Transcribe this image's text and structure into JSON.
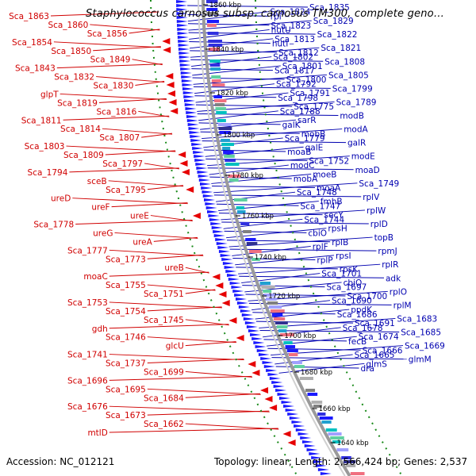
{
  "header": {
    "title": "Staphylococcus carnosus subsp. carnosus TM300, complete geno…"
  },
  "footer": {
    "accession": "Accession: NC_012121",
    "summary": "Topology: linear; Length: 2,566,424 bp; Genes: 2,537"
  },
  "colors": {
    "left_strand_labels": "#d00000",
    "right_strand_labels": "#0000b0",
    "left_gene_arrows": "#e60000",
    "right_gene_arrows": "#1a1aff",
    "backbone": "#888888",
    "marker_dots": "#1a8a1a"
  },
  "kbp_ticks": [
    "1860 kbp",
    "1840 kbp",
    "1820 kbp",
    "1800 kbp",
    "1780 kbp",
    "1760 kbp",
    "1740 kbp",
    "1720 kbp",
    "1700 kbp",
    "1680 kbp",
    "1660 kbp",
    "1640 kbp"
  ],
  "left_labels": [
    "Sca_1863",
    "Sca_1860",
    "Sca_1856",
    "Sca_1854",
    "Sca_1850",
    "Sca_1849",
    "Sca_1843",
    "Sca_1832",
    "Sca_1830",
    "glpT",
    "Sca_1819",
    "Sca_1816",
    "Sca_1811",
    "Sca_1814",
    "Sca_1807",
    "Sca_1803",
    "Sca_1809",
    "Sca_1797",
    "Sca_1794",
    "sceB",
    "Sca_1795",
    "ureD",
    "ureF",
    "ureE",
    "Sca_1778",
    "ureG",
    "ureA",
    "Sca_1777",
    "Sca_1773",
    "ureB",
    "moaC",
    "Sca_1755",
    "Sca_1751",
    "Sca_1753",
    "Sca_1754",
    "Sca_1745",
    "gdh",
    "Sca_1746",
    "glcU",
    "Sca_1741",
    "Sca_1737",
    "Sca_1699",
    "Sca_1696",
    "Sca_1695",
    "Sca_1684",
    "Sca_1676",
    "Sca_1673",
    "Sca_1662",
    "mtlD"
  ],
  "right_labels": [
    "Sca_1835",
    "Sca_1824",
    "rpi",
    "Sca_1829",
    "Sca_1823",
    "hutU",
    "Sca_1822",
    "Sca_1813",
    "hutI",
    "Sca_1821",
    "Sca_1812",
    "Sca_1802",
    "Sca_1808",
    "Sca_1801",
    "Sca_1817",
    "Sca_1805",
    "Sca_1800",
    "Sca_1792",
    "Sca_1799",
    "Sca_1791",
    "Sca_1798",
    "Sca_1789",
    "Sca_1775",
    "Sca_1788",
    "modB",
    "sarR",
    "galK",
    "modA",
    "mobB",
    "Sca_1779",
    "galR",
    "galE",
    "moaB",
    "modE",
    "Sca_1752",
    "modC",
    "moaD",
    "moeB",
    "mobA",
    "Sca_1749",
    "moaA",
    "Sca_1748",
    "rplV",
    "fmhB",
    "Sca_1747",
    "rplW",
    "secY",
    "Sca_1744",
    "rplD",
    "rpsH",
    "cbiO",
    "topB",
    "rplB",
    "rplF",
    "rpmJ",
    "rpsI",
    "rplP",
    "rplR",
    "rpsK",
    "Sca_1701",
    "adk",
    "cbiO",
    "Sca_1697",
    "rplO",
    "Sca_1700",
    "Sca_1690",
    "rplM",
    "ppdK",
    "Sca_1686",
    "Sca_1683",
    "Sca_1691",
    "Sca_1678",
    "Sca_1685",
    "Sca_1674",
    "fecB",
    "Sca_1669",
    "Sca_1666",
    "Sca_1665",
    "glmM",
    "glmS",
    "dra"
  ]
}
